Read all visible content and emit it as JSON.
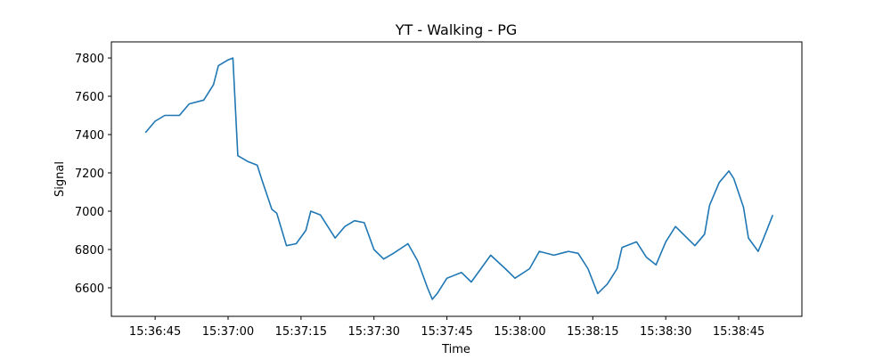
{
  "chart_data": {
    "type": "line",
    "title": "YT - Walking - PG",
    "x_label": "Time",
    "y_label": "Signal",
    "x": [
      "15:36:43",
      "15:36:45",
      "15:36:47",
      "15:36:50",
      "15:36:52",
      "15:36:55",
      "15:36:57",
      "15:36:58",
      "15:37:00",
      "15:37:01",
      "15:37:02",
      "15:37:04",
      "15:37:06",
      "15:37:07",
      "15:37:09",
      "15:37:10",
      "15:37:12",
      "15:37:14",
      "15:37:16",
      "15:37:17",
      "15:37:19",
      "15:37:22",
      "15:37:24",
      "15:37:26",
      "15:37:28",
      "15:37:30",
      "15:37:32",
      "15:37:34",
      "15:37:37",
      "15:37:39",
      "15:37:41",
      "15:37:42",
      "15:37:43",
      "15:37:45",
      "15:37:48",
      "15:37:50",
      "15:37:52",
      "15:37:54",
      "15:37:57",
      "15:37:59",
      "15:38:02",
      "15:38:04",
      "15:38:07",
      "15:38:10",
      "15:38:12",
      "15:38:14",
      "15:38:16",
      "15:38:18",
      "15:38:20",
      "15:38:21",
      "15:38:24",
      "15:38:26",
      "15:38:28",
      "15:38:30",
      "15:38:32",
      "15:38:34",
      "15:38:36",
      "15:38:38",
      "15:38:39",
      "15:38:41",
      "15:38:43",
      "15:38:44",
      "15:38:46",
      "15:38:47",
      "15:38:49",
      "15:38:50",
      "15:38:52"
    ],
    "series": [
      {
        "name": "Signal",
        "color": "#1f77b4",
        "values": [
          7410,
          7470,
          7500,
          7500,
          7560,
          7580,
          7660,
          7760,
          7790,
          7800,
          7290,
          7260,
          7240,
          7160,
          7010,
          6990,
          6820,
          6830,
          6900,
          7000,
          6980,
          6860,
          6920,
          6950,
          6940,
          6800,
          6750,
          6780,
          6830,
          6740,
          6600,
          6540,
          6570,
          6650,
          6680,
          6630,
          6700,
          6770,
          6700,
          6650,
          6700,
          6790,
          6770,
          6790,
          6780,
          6700,
          6570,
          6620,
          6700,
          6810,
          6840,
          6760,
          6720,
          6840,
          6920,
          6870,
          6820,
          6880,
          7030,
          7150,
          7210,
          7170,
          7020,
          6860,
          6790,
          6850,
          6980
        ]
      }
    ],
    "xlim": [
      "15:36:36",
      "15:38:58"
    ],
    "xticks": [
      "15:36:45",
      "15:37:00",
      "15:37:15",
      "15:37:30",
      "15:37:45",
      "15:38:00",
      "15:38:15",
      "15:38:30",
      "15:38:45"
    ],
    "ylim": [
      6451,
      7884
    ],
    "yticks": [
      6600,
      6800,
      7000,
      7200,
      7400,
      7600,
      7800
    ],
    "grid": false
  }
}
